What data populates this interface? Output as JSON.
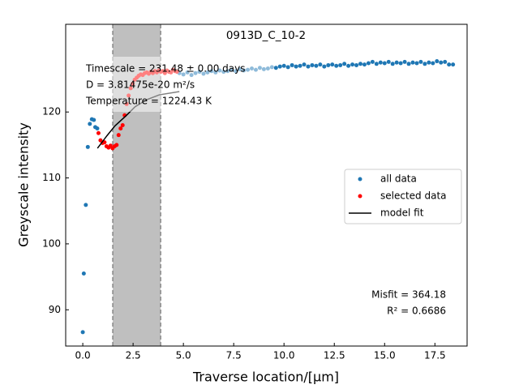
{
  "chart_data": {
    "type": "scatter",
    "title": "0913D_C_10-2",
    "x_label": "Traverse location/[μm]",
    "y_label": "Greyscale intensity",
    "xlim": [
      -0.85,
      19.1
    ],
    "ylim": [
      84.5,
      133.3
    ],
    "xticks": [
      {
        "value": 0,
        "label": "0.0"
      },
      2.5,
      {
        "value": 5,
        "label": "5.0"
      },
      7.5,
      {
        "value": 10,
        "label": "10.0"
      },
      12.5,
      {
        "value": 15,
        "label": "15.0"
      },
      17.5
    ],
    "yticks": [
      90,
      100,
      110,
      120
    ],
    "span": [
      1.49,
      3.87
    ],
    "annotations": [
      "Timescale = 231.48 ± 0.00 days",
      "D = 3.81475e-20 m²/s",
      "Temperature = 1224.43 K"
    ],
    "stats": [
      "Misfit = 364.18",
      "R² = 0.6686"
    ],
    "legend": "center right",
    "series": [
      {
        "name": "all data",
        "color": "#1f77b4",
        "kind": "points",
        "x": [
          0.0,
          0.05,
          0.15,
          0.25,
          0.35,
          0.45,
          0.55,
          0.62,
          0.72,
          4.8,
          5.0,
          5.2,
          5.4,
          5.6,
          5.8,
          6.0,
          6.2,
          6.4,
          6.6,
          6.8,
          7.0,
          7.2,
          7.4,
          7.6,
          7.8,
          8.0,
          8.2,
          8.4,
          8.6,
          8.8,
          9.0,
          9.2,
          9.4,
          9.6,
          9.8,
          10.0,
          10.2,
          10.4,
          10.6,
          10.8,
          11.0,
          11.2,
          11.4,
          11.6,
          11.8,
          12.0,
          12.2,
          12.4,
          12.6,
          12.8,
          13.0,
          13.2,
          13.4,
          13.6,
          13.8,
          14.0,
          14.2,
          14.4,
          14.6,
          14.8,
          15.0,
          15.2,
          15.4,
          15.6,
          15.8,
          16.0,
          16.2,
          16.4,
          16.6,
          16.8,
          17.0,
          17.2,
          17.4,
          17.6,
          17.8,
          18.0,
          18.2,
          18.4
        ],
        "values": [
          86.6,
          95.5,
          105.9,
          114.7,
          118.2,
          118.9,
          118.8,
          117.7,
          117.5,
          125.9,
          125.7,
          126.0,
          125.6,
          125.9,
          126.1,
          125.8,
          126.0,
          126.2,
          126.0,
          126.3,
          126.1,
          126.2,
          126.4,
          126.2,
          126.5,
          126.3,
          126.4,
          126.6,
          126.4,
          126.7,
          126.5,
          126.6,
          126.8,
          126.7,
          126.9,
          127.0,
          126.8,
          127.1,
          126.9,
          127.0,
          127.2,
          126.9,
          127.1,
          127.0,
          127.2,
          126.9,
          127.1,
          127.2,
          127.0,
          127.1,
          127.3,
          127.0,
          127.2,
          127.1,
          127.3,
          127.2,
          127.4,
          127.6,
          127.3,
          127.5,
          127.4,
          127.6,
          127.3,
          127.5,
          127.4,
          127.6,
          127.3,
          127.5,
          127.4,
          127.6,
          127.3,
          127.5,
          127.4,
          127.7,
          127.5,
          127.6,
          127.2,
          127.2
        ]
      },
      {
        "name": "selected data",
        "color": "#ff0000",
        "kind": "points",
        "x": [
          0.78,
          0.88,
          0.98,
          1.08,
          1.18,
          1.28,
          1.38,
          1.48,
          1.58,
          1.68,
          1.78,
          1.88,
          1.98,
          2.08,
          2.18,
          2.28,
          2.38,
          2.48,
          2.58,
          2.68,
          2.78,
          2.88,
          2.98,
          3.08,
          3.18,
          3.28,
          3.38,
          3.48,
          3.58,
          3.68,
          3.78,
          3.88,
          3.98,
          4.08,
          4.18,
          4.28,
          4.38,
          4.48,
          4.58,
          4.68
        ],
        "values": [
          116.8,
          115.7,
          115.3,
          115.4,
          114.8,
          114.6,
          114.9,
          114.5,
          114.8,
          115.0,
          116.5,
          117.5,
          118.0,
          119.5,
          121.2,
          122.5,
          123.6,
          124.3,
          124.9,
          125.2,
          125.5,
          125.7,
          125.6,
          125.9,
          126.0,
          125.8,
          126.1,
          125.9,
          126.2,
          126.0,
          126.3,
          126.1,
          126.2,
          125.9,
          126.3,
          126.1,
          126.0,
          126.4,
          126.2,
          126.1
        ]
      },
      {
        "name": "model fit",
        "color": "#000000",
        "kind": "line",
        "x": [
          0.73,
          1.2,
          1.6,
          2.14,
          2.6,
          3.2,
          3.8,
          4.8
        ],
        "values": [
          114.5,
          116.4,
          117.9,
          119.4,
          120.8,
          121.9,
          122.6,
          123.1
        ]
      }
    ]
  }
}
